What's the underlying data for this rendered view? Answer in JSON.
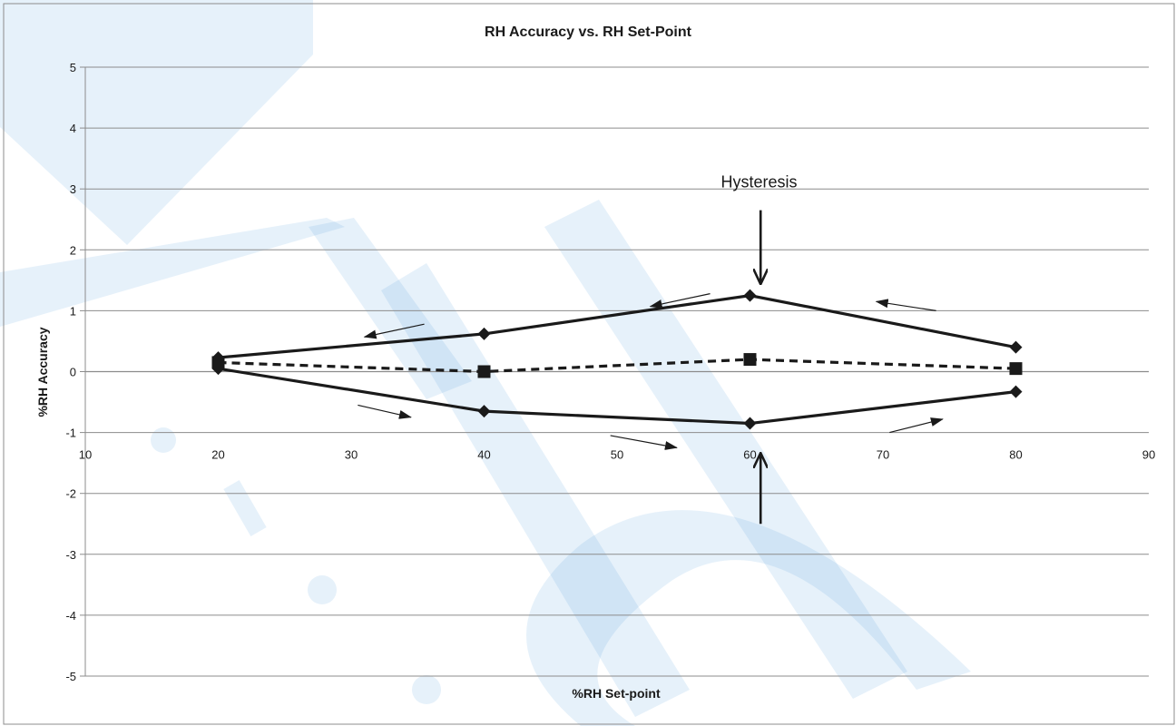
{
  "chart_data": {
    "type": "line",
    "title": "RH Accuracy vs. RH Set-Point",
    "xlabel": "%RH  Set-point",
    "ylabel": "%RH  Accuracy",
    "xlim": [
      10,
      90
    ],
    "ylim": [
      -5,
      5
    ],
    "x_ticks": [
      "10",
      "20",
      "30",
      "40",
      "50",
      "60",
      "70",
      "80",
      "90"
    ],
    "y_ticks": [
      "5",
      "4",
      "3",
      "2",
      "1",
      "0",
      "-1",
      "-2",
      "-3",
      "-4",
      "-5"
    ],
    "grid": "horizontal",
    "series": [
      {
        "style": "solid",
        "marker": "diamond",
        "x": [
          20,
          40,
          60,
          80
        ],
        "y": [
          0.05,
          -0.65,
          -0.85,
          -0.33
        ]
      },
      {
        "style": "solid",
        "marker": "diamond",
        "x": [
          80,
          60,
          40,
          20
        ],
        "y": [
          0.4,
          1.25,
          0.62,
          0.23
        ]
      },
      {
        "style": "dashed",
        "marker": "square",
        "x": [
          20,
          40,
          60,
          80
        ],
        "y": [
          0.15,
          0.0,
          0.2,
          0.05
        ]
      }
    ],
    "annotations": [
      {
        "text": "Hysteresis",
        "x": 60,
        "y": 3.1
      }
    ],
    "arrows": [
      {
        "from": [
          60.8,
          2.65
        ],
        "to": [
          60.8,
          1.45
        ],
        "style": "bold"
      },
      {
        "from": [
          60.8,
          -2.5
        ],
        "to": [
          60.8,
          -1.35
        ],
        "style": "bold"
      },
      {
        "from": [
          30.5,
          -0.55
        ],
        "to": [
          34.5,
          -0.75
        ]
      },
      {
        "from": [
          49.5,
          -1.05
        ],
        "to": [
          54.5,
          -1.25
        ]
      },
      {
        "from": [
          70.5,
          -1.0
        ],
        "to": [
          74.5,
          -0.78
        ]
      },
      {
        "from": [
          74.0,
          1.0
        ],
        "to": [
          69.5,
          1.15
        ]
      },
      {
        "from": [
          57.0,
          1.28
        ],
        "to": [
          52.5,
          1.07
        ]
      },
      {
        "from": [
          35.5,
          0.78
        ],
        "to": [
          31.0,
          0.57
        ]
      }
    ]
  }
}
